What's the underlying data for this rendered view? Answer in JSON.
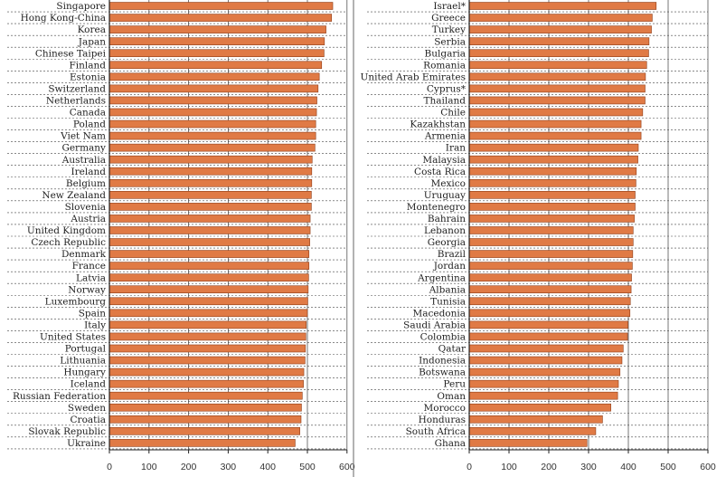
{
  "chart_data": [
    {
      "type": "bar",
      "orientation": "horizontal",
      "categories": [
        "Singapore",
        "Hong Kong-China",
        "Korea",
        "Japan",
        "Chinese Taipei",
        "Finland",
        "Estonia",
        "Switzerland",
        "Netherlands",
        "Canada",
        "Poland",
        "Viet Nam",
        "Germany",
        "Australia",
        "Ireland",
        "Belgium",
        "New Zealand",
        "Slovenia",
        "Austria",
        "United Kingdom",
        "Czech Republic",
        "Denmark",
        "France",
        "Latvia",
        "Norway",
        "Luxembourg",
        "Spain",
        "Italy",
        "United States",
        "Portugal",
        "Lithuania",
        "Hungary",
        "Iceland",
        "Russian Federation",
        "Sweden",
        "Croatia",
        "Slovak Republic",
        "Ukraine"
      ],
      "values": [
        564,
        561,
        547,
        543,
        542,
        536,
        530,
        527,
        524,
        523,
        521,
        521,
        519,
        512,
        511,
        511,
        510,
        510,
        507,
        507,
        506,
        504,
        504,
        503,
        502,
        501,
        500,
        497,
        496,
        495,
        494,
        491,
        490,
        487,
        485,
        484,
        481,
        469
      ],
      "xlim": [
        0,
        600
      ],
      "xticks": [
        0,
        100,
        200,
        300,
        400,
        500,
        600
      ],
      "grid": true
    },
    {
      "type": "bar",
      "orientation": "horizontal",
      "categories": [
        "Israel*",
        "Greece",
        "Turkey",
        "Serbia",
        "Bulgaria",
        "Romania",
        "United Arab Emirates",
        "Cyprus*",
        "Thailand",
        "Chile",
        "Kazakhstan",
        "Armenia",
        "Iran",
        "Malaysia",
        "Costa Rica",
        "Mexico",
        "Uruguay",
        "Montenegro",
        "Bahrain",
        "Lebanon",
        "Georgia",
        "Brazil",
        "Jordan",
        "Argentina",
        "Albania",
        "Tunisia",
        "Macedonia",
        "Saudi Arabia",
        "Colombia",
        "Qatar",
        "Indonesia",
        "Botswana",
        "Peru",
        "Oman",
        "Morocco",
        "Honduras",
        "South Africa",
        "Ghana"
      ],
      "values": [
        470,
        460,
        458,
        452,
        451,
        446,
        443,
        442,
        442,
        436,
        432,
        432,
        425,
        424,
        420,
        419,
        417,
        417,
        415,
        412,
        412,
        411,
        410,
        408,
        407,
        405,
        404,
        399,
        398,
        387,
        384,
        379,
        375,
        373,
        356,
        335,
        318,
        296
      ],
      "xlim": [
        0,
        600
      ],
      "xticks": [
        0,
        100,
        200,
        300,
        400,
        500,
        600
      ],
      "grid": true
    }
  ],
  "colors": {
    "bar_fill": "#e07a45",
    "bar_stroke": "#8e3c17",
    "axis": "#222222",
    "grid": "#555555"
  }
}
